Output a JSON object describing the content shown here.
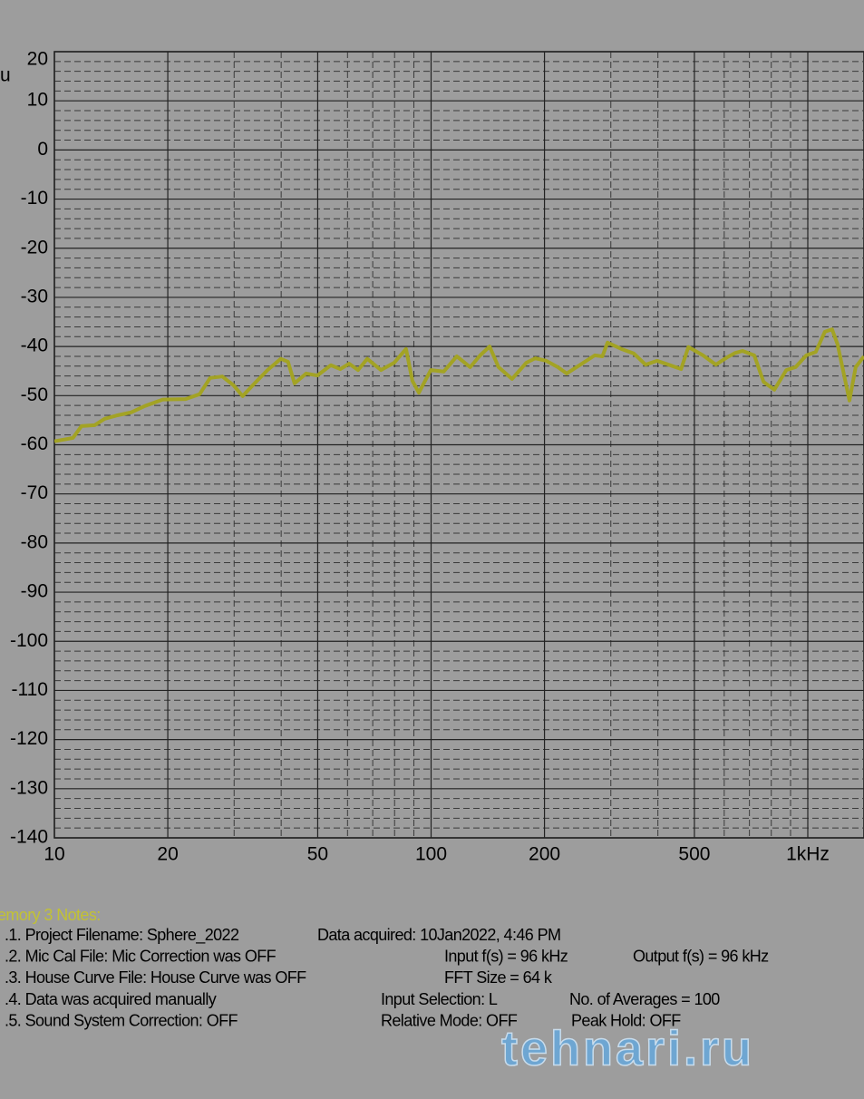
{
  "chart_data": {
    "type": "line",
    "y_label": "u",
    "xscale": "log",
    "xlim": [
      10,
      1410
    ],
    "xticks": [
      10,
      20,
      50,
      100,
      200,
      500,
      {
        "value": 1000,
        "label": "1kHz"
      }
    ],
    "ylim": [
      -140,
      20
    ],
    "yticks": [
      -140,
      -130,
      -120,
      -110,
      -100,
      -90,
      -80,
      -70,
      -60,
      -50,
      -40,
      -30,
      -20,
      -10,
      0,
      10,
      20
    ],
    "grid": true,
    "minor_grid": true,
    "x": [
      10,
      11.2,
      11.8,
      12.8,
      13.6,
      14.7,
      16,
      17.4,
      19.4,
      22.3,
      24.3,
      25.9,
      27.9,
      29.9,
      31.6,
      33.8,
      36.8,
      39.9,
      41.7,
      43.4,
      46.6,
      49.9,
      54.2,
      57.4,
      60.6,
      64,
      67.7,
      73.6,
      79.8,
      85.8,
      89.2,
      92.8,
      99.8,
      108,
      117,
      127,
      135,
      143,
      151,
      164,
      179,
      189,
      202,
      217,
      229,
      249,
      272,
      285,
      294,
      320,
      345,
      371,
      398,
      427,
      461,
      482,
      527,
      570,
      611,
      642,
      671,
      721,
      763,
      815,
      877,
      928,
      991,
      1050,
      1110,
      1160,
      1200,
      1290,
      1340,
      1410
    ],
    "series": [
      {
        "color": "#a3a324",
        "values": [
          -59.3,
          -58.6,
          -56.2,
          -56,
          -54.7,
          -54,
          -53.4,
          -52.1,
          -50.8,
          -50.7,
          -49.7,
          -46.4,
          -46.1,
          -47.9,
          -50.1,
          -47.7,
          -44.8,
          -42.5,
          -43.1,
          -47.5,
          -45.5,
          -45.9,
          -43.8,
          -44.6,
          -43.5,
          -44.8,
          -42.5,
          -44.8,
          -43.3,
          -40.5,
          -47,
          -49.4,
          -44.8,
          -45.1,
          -42,
          -44.2,
          -41.8,
          -40,
          -44.2,
          -46.6,
          -43.3,
          -42.4,
          -42.9,
          -44.2,
          -45.5,
          -43.7,
          -41.8,
          -42,
          -39.2,
          -40.5,
          -41.4,
          -43.7,
          -42.9,
          -43.7,
          -44.6,
          -40.1,
          -41.8,
          -43.7,
          -42.2,
          -41.3,
          -40.9,
          -41.8,
          -47.2,
          -48.8,
          -44.8,
          -44.2,
          -41.8,
          -41.1,
          -37,
          -36.5,
          -39.6,
          -51,
          -44.2,
          -42
        ]
      }
    ]
  },
  "notes": {
    "title": "emory 3 Notes:",
    "lines": [
      [
        ".1. Project Filename: Sphere_2022",
        "Data acquired: 10Jan2022, 4:46 PM"
      ],
      [
        ".2. Mic Cal File: Mic Correction was OFF",
        "Input f(s) = 96 kHz",
        "Output f(s) = 96 kHz"
      ],
      [
        ".3. House Curve File: House Curve was OFF",
        "FFT Size = 64 k"
      ],
      [
        ".4. Data was acquired manually",
        "Input Selection: L",
        "No. of Averages = 100"
      ],
      [
        ".5. Sound System Correction: OFF",
        "Relative Mode:  OFF",
        "Peak Hold: OFF"
      ]
    ]
  },
  "watermark": "tehnari.ru"
}
